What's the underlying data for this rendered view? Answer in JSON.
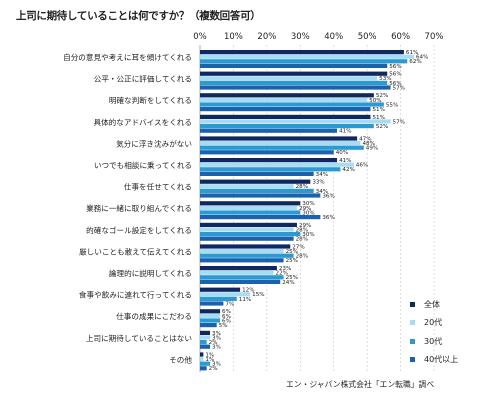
{
  "title": "上司に期待していることは何ですか？（複数回答可）",
  "source": "エン・ジャパン株式会社「エン転職」調べ",
  "colors": {
    "series": [
      "#0f2860",
      "#a7dcf4",
      "#2c9ad2",
      "#1a62ae"
    ],
    "grid": "#c8c8c8",
    "axis": "#999999"
  },
  "chart_data": {
    "type": "bar",
    "orientation": "horizontal",
    "title": "上司に期待していることは何ですか？（複数回答可）",
    "x_ticks": [
      "0%",
      "10%",
      "20%",
      "30%",
      "40%",
      "50%",
      "60%",
      "70%"
    ],
    "xlim": [
      0,
      70
    ],
    "grid": true,
    "legend_position": "right",
    "categories": [
      "自分の意見や考えに耳を傾けてくれる",
      "公平・公正に評価してくれる",
      "明確な判断をしてくれる",
      "具体的なアドバイスをくれる",
      "気分に浮き沈みがない",
      "いつでも相談に乗ってくれる",
      "仕事を任せてくれる",
      "業務に一緒に取り組んでくれる",
      "的確なゴール設定をしてくれる",
      "厳しいことも敢えて伝えてくれる",
      "論理的に説明してくれる",
      "食事や飲みに連れて行ってくれる",
      "仕事の成果にこだわる",
      "上司に期待していることはない",
      "その他"
    ],
    "series": [
      {
        "name": "全体",
        "values": [
          61,
          56,
          52,
          51,
          47,
          41,
          33,
          30,
          29,
          27,
          23,
          12,
          6,
          3,
          1
        ]
      },
      {
        "name": "20代",
        "values": [
          64,
          53,
          50,
          57,
          48,
          46,
          28,
          29,
          28,
          25,
          22,
          15,
          6,
          3,
          1
        ]
      },
      {
        "name": "30代",
        "values": [
          62,
          56,
          55,
          52,
          49,
          42,
          34,
          30,
          30,
          28,
          25,
          11,
          6,
          2,
          3
        ]
      },
      {
        "name": "40代以上",
        "values": [
          56,
          57,
          51,
          41,
          40,
          34,
          36,
          36,
          28,
          25,
          24,
          7,
          5,
          3,
          2
        ]
      }
    ],
    "value_labels": [
      [
        "61%",
        "64%",
        "62%",
        "56%"
      ],
      [
        "56%",
        "53%",
        "56%",
        "57%"
      ],
      [
        "52%",
        "50%",
        "55%",
        "51%"
      ],
      [
        "51%",
        "57%",
        "52%",
        "41%"
      ],
      [
        "47%",
        "48%",
        "49%",
        "40%"
      ],
      [
        "41%",
        "46%",
        "42%",
        "34%"
      ],
      [
        "33%",
        "28%",
        "34%",
        "36%"
      ],
      [
        "30%",
        "29%",
        "30%",
        "36%"
      ],
      [
        "29%",
        "28%",
        "30%",
        "28%"
      ],
      [
        "27%",
        "25%",
        "28%",
        "25%"
      ],
      [
        "23%",
        "22%",
        "25%",
        "24%"
      ],
      [
        "12%",
        "15%",
        "11%",
        "7%"
      ],
      [
        "6%",
        "6%",
        "6%",
        "5%"
      ],
      [
        "3%",
        "3%",
        "2%",
        "3%"
      ],
      [
        "1%",
        "1%",
        "3%",
        "2%"
      ]
    ]
  }
}
